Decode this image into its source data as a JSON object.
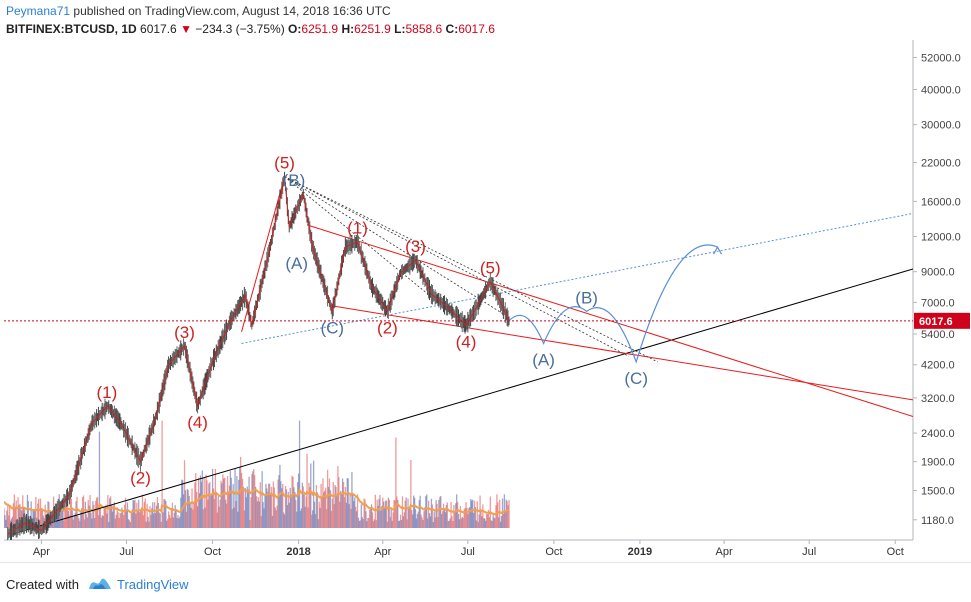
{
  "header": {
    "author": "Peymana71",
    "published_text": "published on TradingView.com, August 14, 2018 16:36 UTC",
    "symbol": "BITFINEX:BTCUSD, 1D",
    "last": "6017.6",
    "change": "−234.3 (−3.75%)",
    "o_label": "O:",
    "o_val": "6251.9",
    "h_label": "H:",
    "h_val": "6251.9",
    "l_label": "L:",
    "l_val": "5858.6",
    "c_label": "C:",
    "c_val": "6017.6"
  },
  "footer": {
    "created_with": "Created with",
    "brand": "TradingView"
  },
  "chart_data": {
    "type": "line",
    "scale": "log",
    "price_ticks": [
      "52000.0",
      "40000.0",
      "30000.0",
      "22000.0",
      "16000.0",
      "12000.0",
      "9000.0",
      "7000.0",
      "5400.0",
      "4200.0",
      "3200.0",
      "2400.0",
      "1900.0",
      "1500.0",
      "1180.0"
    ],
    "price_tick_values": [
      52000,
      40000,
      30000,
      22000,
      16000,
      12000,
      9000,
      7000,
      5400,
      4200,
      3200,
      2400,
      1900,
      1500,
      1180
    ],
    "last_price_label": "6017.6",
    "last_price": 6017.6,
    "time_ticks": [
      {
        "label": "Apr",
        "date": "2017-04-01",
        "bold": false
      },
      {
        "label": "Jul",
        "date": "2017-07-01",
        "bold": false
      },
      {
        "label": "Oct",
        "date": "2017-10-01",
        "bold": false
      },
      {
        "label": "2018",
        "date": "2018-01-01",
        "bold": true
      },
      {
        "label": "Apr",
        "date": "2018-04-01",
        "bold": false
      },
      {
        "label": "Jul",
        "date": "2018-07-01",
        "bold": false
      },
      {
        "label": "Oct",
        "date": "2018-10-01",
        "bold": false
      },
      {
        "label": "2019",
        "date": "2019-01-01",
        "bold": true
      },
      {
        "label": "Apr",
        "date": "2019-04-01",
        "bold": false
      },
      {
        "label": "Jul",
        "date": "2019-07-01",
        "bold": false
      },
      {
        "label": "Oct",
        "date": "2019-10-01",
        "bold": false
      }
    ],
    "x_range": [
      "2017-02-20",
      "2019-10-20"
    ],
    "y_range": [
      1000,
      60000
    ],
    "price_path": [
      [
        "2017-02-24",
        1050
      ],
      [
        "2017-03-15",
        1150
      ],
      [
        "2017-04-01",
        1080
      ],
      [
        "2017-05-01",
        1450
      ],
      [
        "2017-05-25",
        2600
      ],
      [
        "2017-06-11",
        3000
      ],
      [
        "2017-06-25",
        2600
      ],
      [
        "2017-07-16",
        1900
      ],
      [
        "2017-08-01",
        2700
      ],
      [
        "2017-08-15",
        4200
      ],
      [
        "2017-09-01",
        4900
      ],
      [
        "2017-09-15",
        3000
      ],
      [
        "2017-10-01",
        4300
      ],
      [
        "2017-10-20",
        6000
      ],
      [
        "2017-11-05",
        7400
      ],
      [
        "2017-11-12",
        5800
      ],
      [
        "2017-12-01",
        10800
      ],
      [
        "2017-12-17",
        19600
      ],
      [
        "2017-12-22",
        13000
      ],
      [
        "2018-01-06",
        17000
      ],
      [
        "2018-01-16",
        11000
      ],
      [
        "2018-02-06",
        6500
      ],
      [
        "2018-02-20",
        11000
      ],
      [
        "2018-03-05",
        11500
      ],
      [
        "2018-03-20",
        8000
      ],
      [
        "2018-04-06",
        6500
      ],
      [
        "2018-04-20",
        8900
      ],
      [
        "2018-05-06",
        9900
      ],
      [
        "2018-05-23",
        7500
      ],
      [
        "2018-06-12",
        6600
      ],
      [
        "2018-06-29",
        5800
      ],
      [
        "2018-07-10",
        6700
      ],
      [
        "2018-07-25",
        8300
      ],
      [
        "2018-08-05",
        7000
      ],
      [
        "2018-08-14",
        6017.6
      ]
    ],
    "volume": {
      "from": "2017-02-20",
      "to": "2018-08-14"
    },
    "impulse_labels": [
      {
        "label": "(1)",
        "date": "2017-06-10",
        "price": 3000
      },
      {
        "label": "(2)",
        "date": "2017-07-16",
        "price": 1900
      },
      {
        "label": "(3)",
        "date": "2017-09-01",
        "price": 4900
      },
      {
        "label": "(4)",
        "date": "2017-09-15",
        "price": 3000
      },
      {
        "label": "(5)",
        "date": "2017-12-17",
        "price": 19600
      },
      {
        "label": "(1)",
        "date": "2018-03-05",
        "price": 11500
      },
      {
        "label": "(2)",
        "date": "2018-04-06",
        "price": 6500
      },
      {
        "label": "(3)",
        "date": "2018-05-06",
        "price": 9900
      },
      {
        "label": "(4)",
        "date": "2018-06-29",
        "price": 5800
      },
      {
        "label": "(5)",
        "date": "2018-07-25",
        "price": 8300
      }
    ],
    "corrective_labels": [
      {
        "label": "(B)",
        "date": "2017-12-27",
        "price": 17000
      },
      {
        "label": "(A)",
        "date": "2017-12-30",
        "price": 11000
      },
      {
        "label": "(C)",
        "date": "2018-02-06",
        "price": 6500
      },
      {
        "label": "(A)",
        "date": "2018-09-20",
        "price": 5000
      },
      {
        "label": "(B)",
        "date": "2018-11-05",
        "price": 6500
      },
      {
        "label": "(C)",
        "date": "2018-12-28",
        "price": 4300
      }
    ],
    "projection": [
      [
        "2018-08-14",
        6017.6
      ],
      [
        "2018-09-20",
        5000
      ],
      [
        "2018-11-05",
        6500
      ],
      [
        "2018-12-28",
        4300
      ],
      [
        "2019-03-25",
        11000
      ]
    ],
    "trend_lines": [
      {
        "name": "support",
        "color": "#000000",
        "from": [
          "2017-03-01",
          1050
        ],
        "to": [
          "2019-10-20",
          9200
        ]
      },
      {
        "name": "upper-channel",
        "color": "#e81c1c",
        "from": [
          "2018-01-10",
          13200
        ],
        "to": [
          "2019-10-20",
          2750
        ]
      },
      {
        "name": "lower-channel",
        "color": "#e81c1c",
        "from": [
          "2018-02-06",
          6800
        ],
        "to": [
          "2019-10-20",
          3150
        ]
      },
      {
        "name": "impulse-lower",
        "color": "#e81c1c",
        "from": [
          "2017-11-01",
          5500
        ],
        "to": [
          "2017-12-17",
          19600
        ]
      },
      {
        "name": "dotted-upper",
        "color": "#5b8fd6",
        "from": [
          "2017-11-01",
          5000
        ],
        "to": [
          "2019-10-20",
          14500
        ]
      }
    ],
    "colors": {
      "impulse": "#cc2222",
      "corrective": "#4a6f9c",
      "up": "#4a5fa8",
      "down": "#e04848",
      "ma": "#f0a050",
      "projection": "#5b8fd6"
    }
  }
}
